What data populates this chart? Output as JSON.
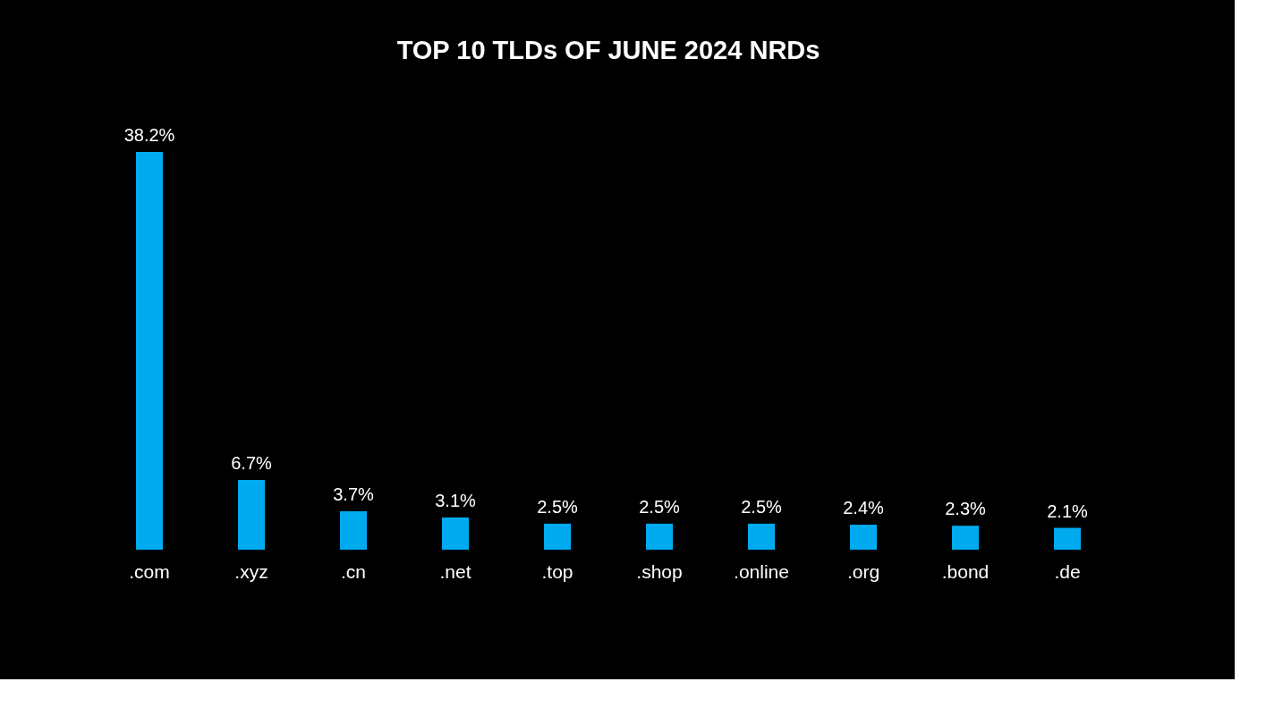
{
  "chart_data": {
    "type": "bar",
    "title": "TOP 10 TLDs OF JUNE 2024 NRDs",
    "categories": [
      ".com",
      ".xyz",
      ".cn",
      ".net",
      ".top",
      ".shop",
      ".online",
      ".org",
      ".bond",
      ".de"
    ],
    "values": [
      38.2,
      6.7,
      3.7,
      3.1,
      2.5,
      2.5,
      2.5,
      2.4,
      2.3,
      2.1
    ],
    "value_labels": [
      "38.2%",
      "6.7%",
      "3.7%",
      "3.1%",
      "2.5%",
      "2.5%",
      "2.5%",
      "2.4%",
      "2.3%",
      "2.1%"
    ],
    "color": "#00aaee",
    "grid": false
  }
}
